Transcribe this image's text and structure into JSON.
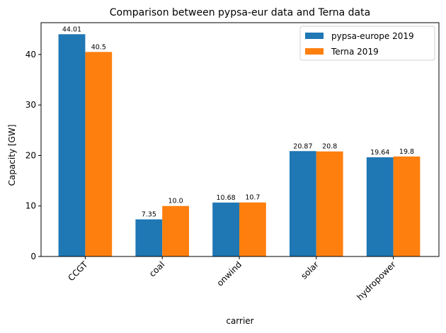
{
  "chart_data": {
    "type": "bar",
    "title": "Comparison between pypsa-eur data and Terna data",
    "xlabel": "carrier",
    "ylabel": "Capacity [GW]",
    "categories": [
      "CCGT",
      "coal",
      "onwind",
      "solar",
      "hydropower"
    ],
    "series": [
      {
        "name": "pypsa-europe 2019",
        "color": "#1f77b4",
        "values": [
          44.01,
          7.35,
          10.68,
          20.87,
          19.64
        ],
        "labels": [
          "44.01",
          "7.35",
          "10.68",
          "20.87",
          "19.64"
        ]
      },
      {
        "name": "Terna 2019",
        "color": "#ff7f0e",
        "values": [
          40.5,
          10.0,
          10.7,
          20.8,
          19.8
        ],
        "labels": [
          "40.5",
          "10.0",
          "10.7",
          "20.8",
          "19.8"
        ]
      }
    ],
    "ylim": [
      0,
      46.3
    ],
    "yticks": [
      0,
      10,
      20,
      30,
      40
    ],
    "grid": false,
    "legend_position": "top-right"
  }
}
